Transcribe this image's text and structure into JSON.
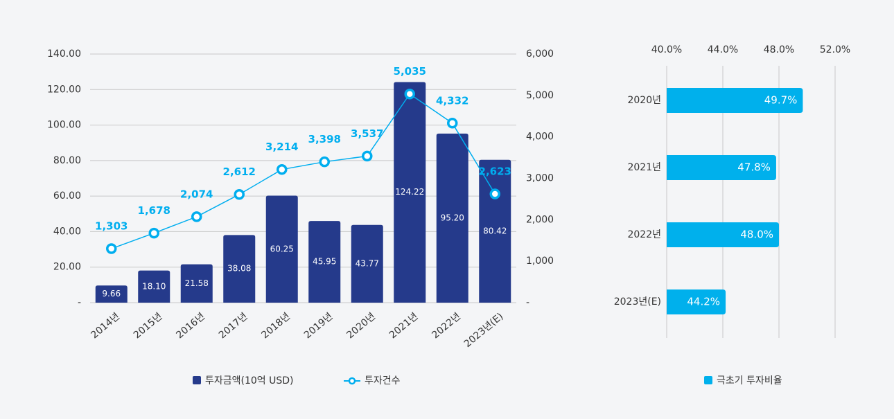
{
  "chart_data": [
    {
      "type": "bar",
      "categories": [
        "2014년",
        "2015년",
        "2016년",
        "2017년",
        "2018년",
        "2019년",
        "2020년",
        "2021년",
        "2022년",
        "2023년(E)"
      ],
      "series": [
        {
          "name": "투자금액(10억 USD)",
          "type": "bar",
          "color": "#253a8b",
          "values": [
            9.66,
            18.1,
            21.58,
            38.08,
            60.25,
            45.95,
            43.77,
            124.22,
            95.2,
            80.42
          ],
          "value_labels": [
            "9.66",
            "18.10",
            "21.58",
            "38.08",
            "60.25",
            "45.95",
            "43.77",
            "124.22",
            "95.20",
            "80.42"
          ]
        },
        {
          "name": "투자건수",
          "type": "line",
          "axis": "y2",
          "color": "#00aeef",
          "values": [
            1303,
            1678,
            2074,
            2612,
            3214,
            3398,
            3537,
            5035,
            4332,
            2623
          ],
          "value_labels": [
            "1,303",
            "1,678",
            "2,074",
            "2,612",
            "3,214",
            "3,398",
            "3,537",
            "5,035",
            "4,332",
            "2,623"
          ]
        }
      ],
      "ylim": [
        0,
        140
      ],
      "yticks": [
        {
          "value": 0,
          "label": "-"
        },
        {
          "value": 20,
          "label": "20.00"
        },
        {
          "value": 40,
          "label": "40.00"
        },
        {
          "value": 60,
          "label": "60.00"
        },
        {
          "value": 80,
          "label": "80.00"
        },
        {
          "value": 100,
          "label": "100.00"
        },
        {
          "value": 120,
          "label": "120.00"
        },
        {
          "value": 140,
          "label": "140.00"
        }
      ],
      "y2lim": [
        0,
        6000
      ],
      "y2ticks": [
        {
          "value": 0,
          "label": "-"
        },
        {
          "value": 1000,
          "label": "1,000"
        },
        {
          "value": 2000,
          "label": "2,000"
        },
        {
          "value": 3000,
          "label": "3,000"
        },
        {
          "value": 4000,
          "label": "4,000"
        },
        {
          "value": 5000,
          "label": "5,000"
        },
        {
          "value": 6000,
          "label": "6,000"
        }
      ],
      "grid": true
    },
    {
      "type": "hbar",
      "categories": [
        "2020년",
        "2021년",
        "2022년",
        "2023년(E)"
      ],
      "series": [
        {
          "name": "극초기 투자비율",
          "color": "#00b0ec",
          "values": [
            49.7,
            47.8,
            48.0,
            44.2
          ],
          "value_labels": [
            "49.7%",
            "47.8%",
            "48.0%",
            "44.2%"
          ]
        }
      ],
      "xlim": [
        40,
        52
      ],
      "xticks": [
        {
          "value": 40,
          "label": "40.0%"
        },
        {
          "value": 44,
          "label": "44.0%"
        },
        {
          "value": 48,
          "label": "48.0%"
        },
        {
          "value": 52,
          "label": "52.0%"
        }
      ],
      "grid": true
    }
  ]
}
